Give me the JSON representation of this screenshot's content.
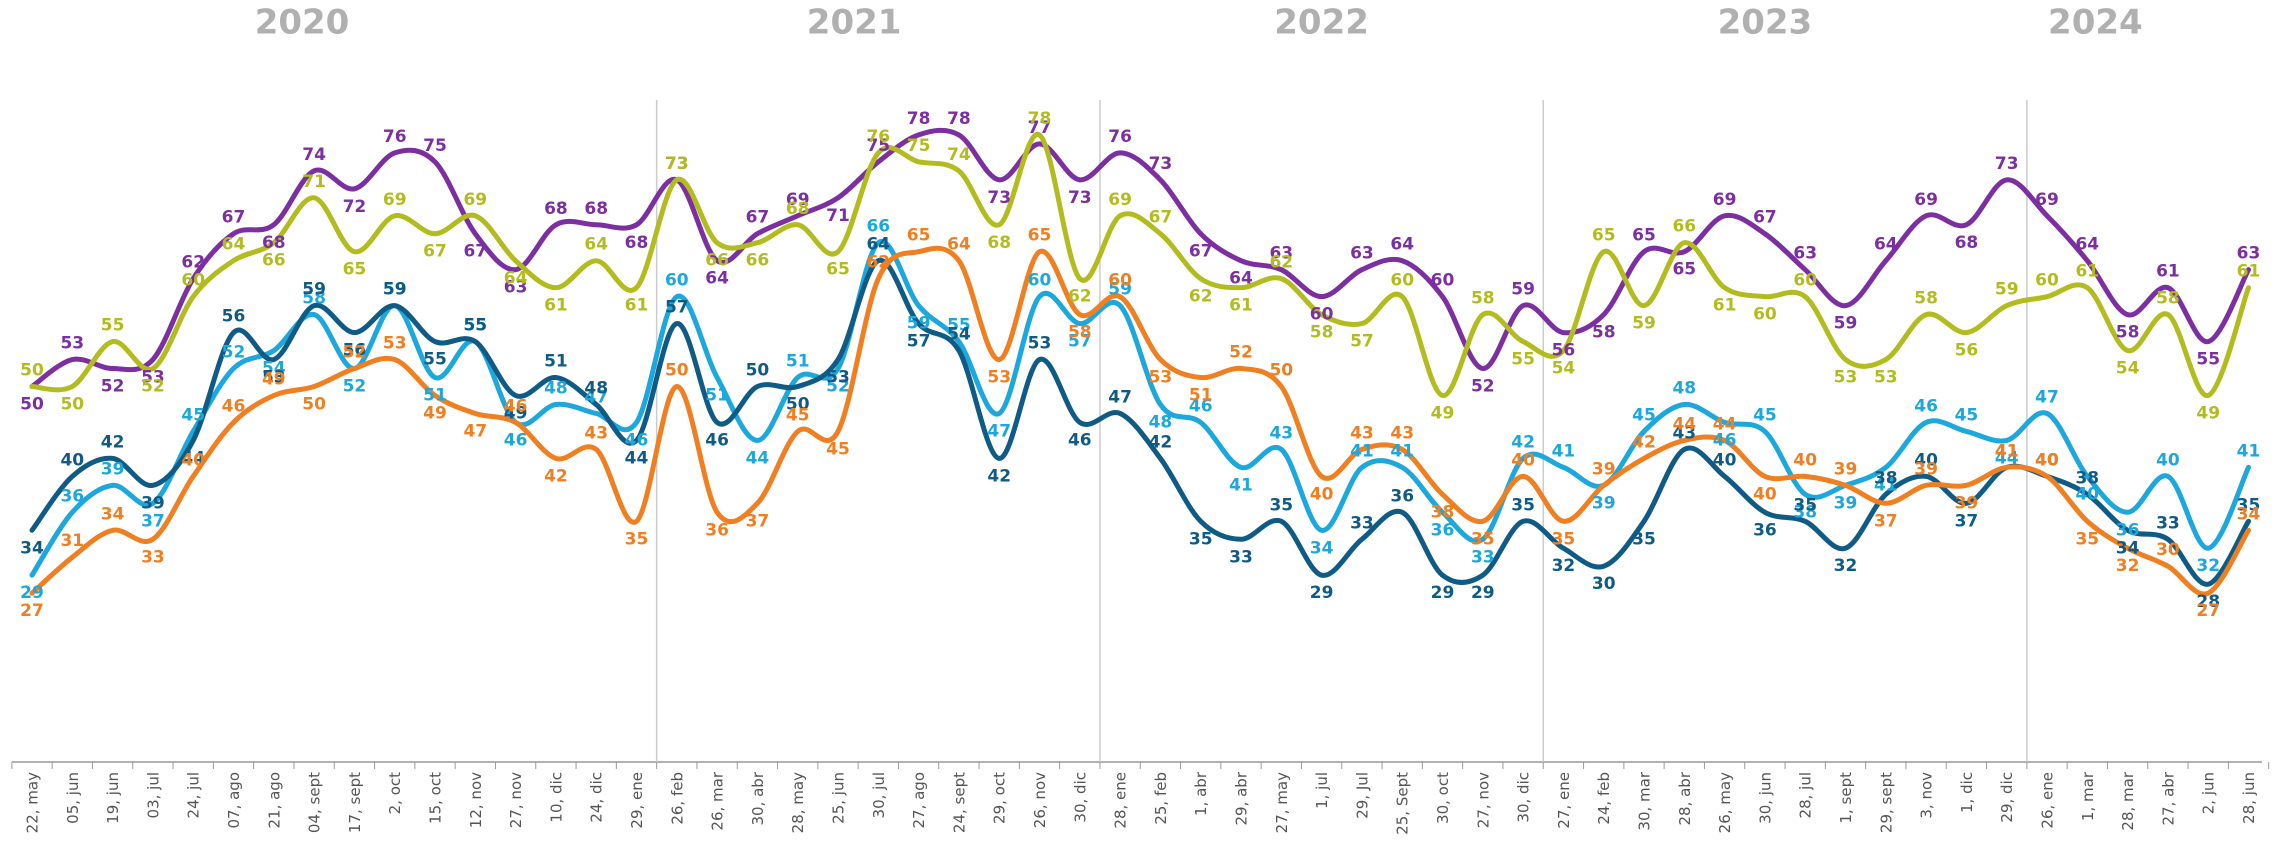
{
  "chart_data": {
    "type": "line",
    "years": [
      "2020",
      "2021",
      "2022",
      "2023",
      "2024"
    ],
    "categories": [
      "22, may",
      "05, jun",
      "19, jun",
      "03, jul",
      "24, jul",
      "07, ago",
      "21, ago",
      "04, sept",
      "17, sept",
      "2, oct",
      "15, oct",
      "12, nov",
      "27, nov",
      "10, dic",
      "24, dic",
      "29, ene",
      "26, feb",
      "26, mar",
      "30, abr",
      "28, may",
      "25, jun",
      "30, jul",
      "27, ago",
      "24, sept",
      "29, oct",
      "26, nov",
      "30, dic",
      "28, ene",
      "25, feb",
      "1, abr",
      "29, abr",
      "27, may",
      "1, jul",
      "29, Jul",
      "25, Sept",
      "30, oct",
      "27, nov",
      "30, dic",
      "27, ene",
      "24, feb",
      "30, mar",
      "28, abr",
      "26, may",
      "30, jun",
      "28, jul",
      "1, sept",
      "29, sept",
      "3, nov",
      "1, dic",
      "29, dic",
      "26, ene",
      "1, mar",
      "28, mar",
      "27, abr",
      "2, jun",
      "28, jun"
    ],
    "ylim": [
      15,
      85
    ],
    "series": [
      {
        "color": "#7b2fa0",
        "values": [
          50,
          53,
          52,
          53,
          62,
          67,
          68,
          74,
          72,
          76,
          75,
          67,
          63,
          68,
          68,
          68,
          73,
          64,
          67,
          69,
          71,
          75,
          78,
          78,
          73,
          77,
          73,
          76,
          73,
          67,
          64,
          63,
          60,
          63,
          64,
          60,
          52,
          59,
          56,
          58,
          65,
          65,
          69,
          67,
          63,
          59,
          64,
          69,
          68,
          73,
          69,
          64,
          58,
          61,
          55,
          63
        ]
      },
      {
        "color": "#b3bc1e",
        "values": [
          50,
          50,
          55,
          52,
          60,
          64,
          66,
          71,
          65,
          69,
          67,
          69,
          64,
          61,
          64,
          61,
          73,
          66,
          66,
          68,
          65,
          76,
          75,
          74,
          68,
          78,
          62,
          69,
          67,
          62,
          61,
          62,
          58,
          57,
          60,
          49,
          58,
          55,
          54,
          65,
          59,
          66,
          61,
          60,
          60,
          53,
          53,
          58,
          56,
          59,
          60,
          61,
          54,
          58,
          49,
          61
        ]
      },
      {
        "color": "#1ca7dd",
        "values": [
          29,
          36,
          39,
          37,
          45,
          52,
          54,
          58,
          52,
          59,
          51,
          55,
          46,
          48,
          47,
          46,
          60,
          51,
          44,
          51,
          52,
          66,
          59,
          55,
          47,
          60,
          57,
          59,
          48,
          46,
          41,
          43,
          34,
          41,
          41,
          36,
          33,
          42,
          41,
          39,
          45,
          48,
          46,
          45,
          38,
          39,
          41,
          46,
          45,
          44,
          47,
          40,
          36,
          40,
          32,
          41
        ]
      },
      {
        "color": "#0f5b86",
        "values": [
          34,
          40,
          42,
          39,
          44,
          56,
          53,
          59,
          56,
          59,
          55,
          55,
          49,
          51,
          48,
          44,
          57,
          46,
          50,
          50,
          53,
          64,
          57,
          54,
          42,
          53,
          46,
          47,
          42,
          35,
          33,
          35,
          29,
          33,
          36,
          29,
          29,
          35,
          32,
          30,
          35,
          43,
          40,
          36,
          35,
          32,
          38,
          40,
          37,
          41,
          40,
          38,
          34,
          33,
          28,
          35
        ]
      },
      {
        "color": "#f07f22",
        "values": [
          27,
          31,
          34,
          33,
          40,
          46,
          49,
          50,
          52,
          53,
          49,
          47,
          46,
          42,
          43,
          35,
          50,
          36,
          37,
          45,
          45,
          62,
          65,
          64,
          53,
          65,
          58,
          60,
          53,
          51,
          52,
          50,
          40,
          43,
          43,
          38,
          35,
          40,
          35,
          39,
          42,
          44,
          44,
          40,
          40,
          39,
          37,
          39,
          39,
          41,
          40,
          35,
          32,
          30,
          27,
          34
        ]
      }
    ]
  }
}
